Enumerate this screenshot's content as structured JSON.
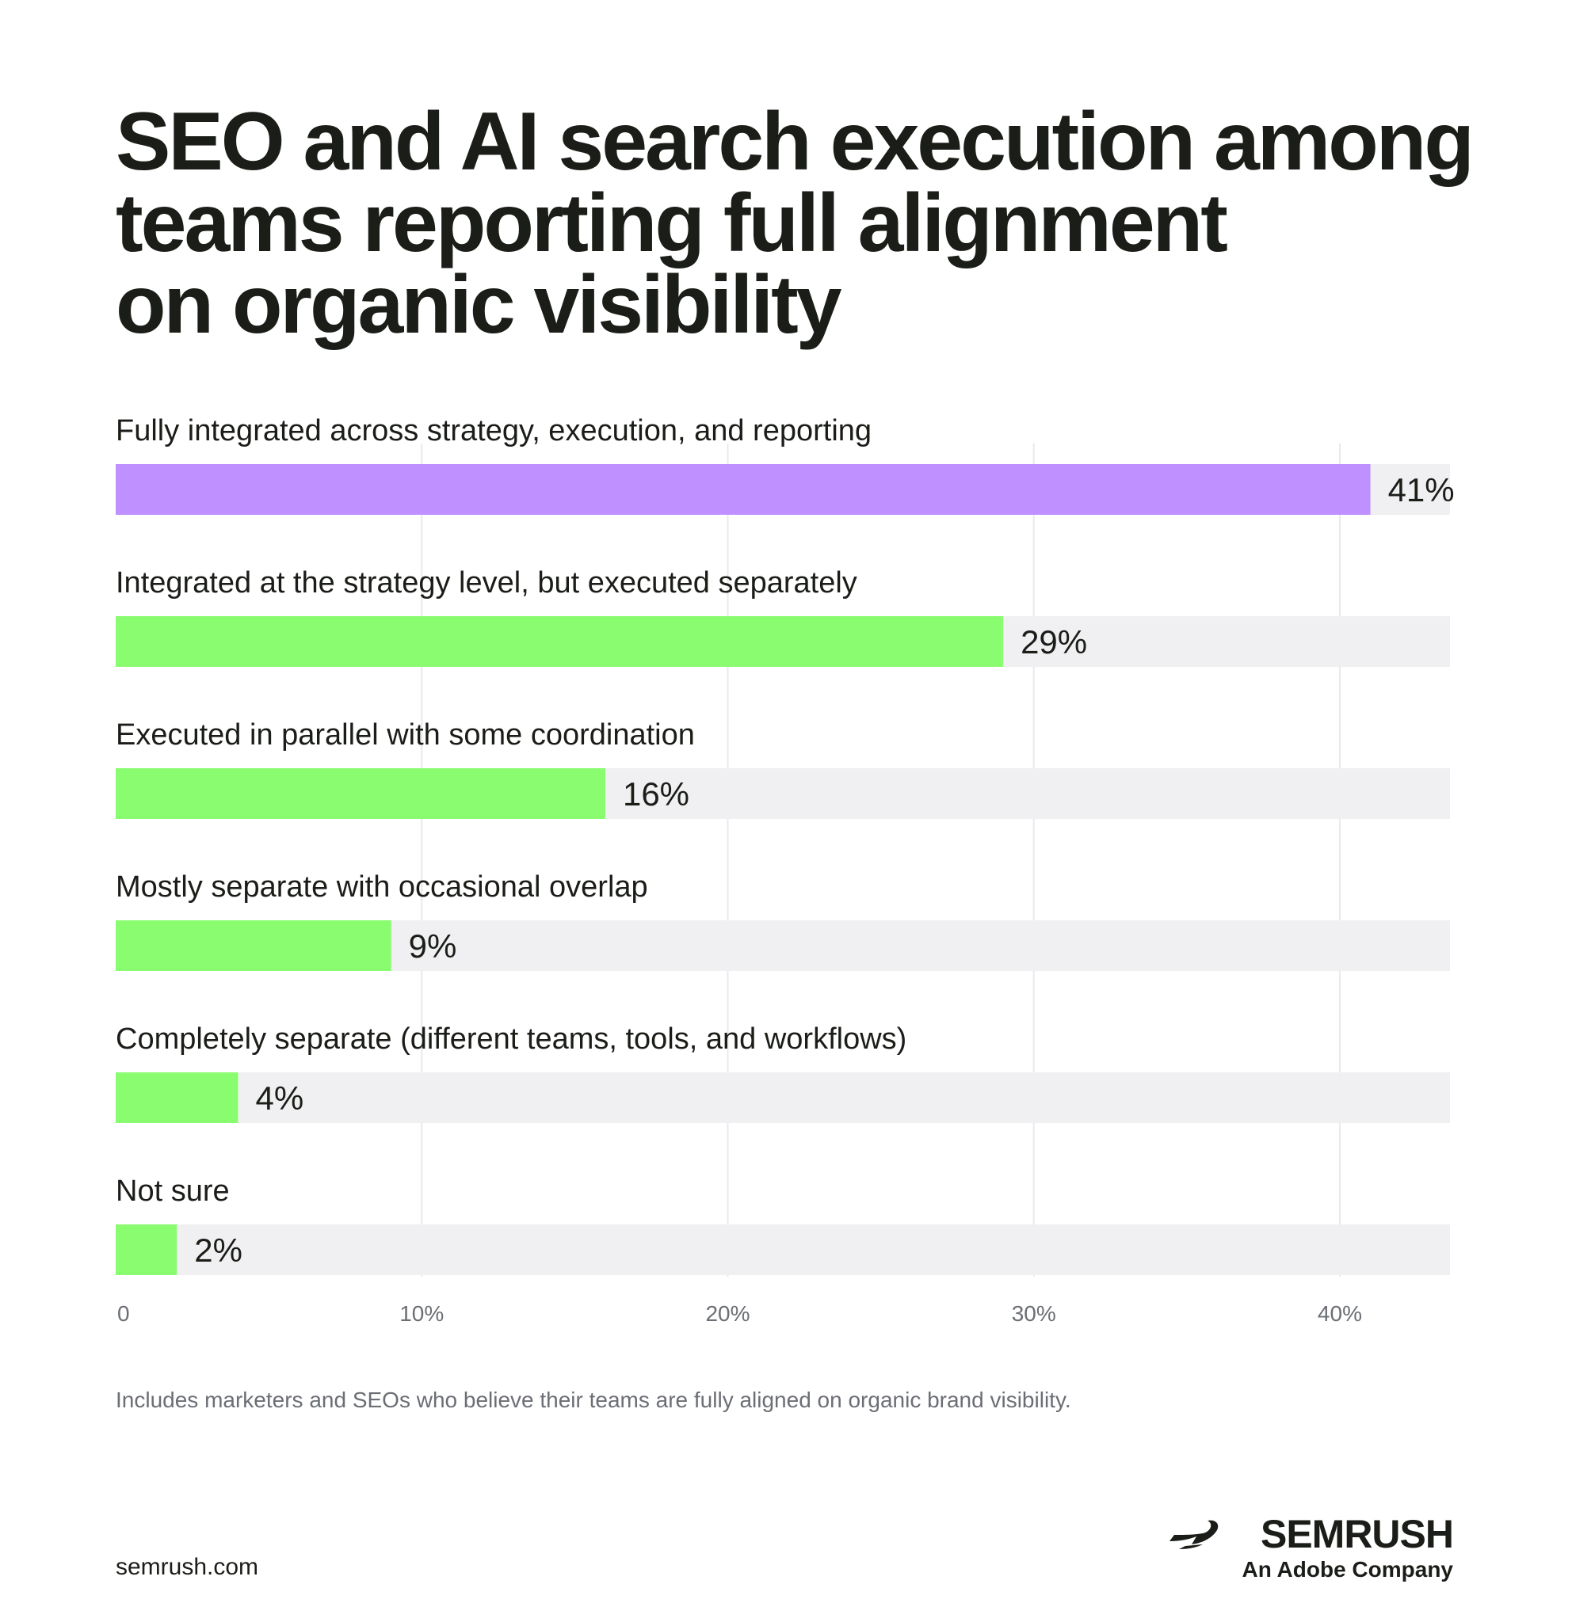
{
  "title_lines": [
    "SEO and AI search execution among",
    "teams reporting full alignment",
    "on organic visibility"
  ],
  "chart_data": {
    "type": "bar",
    "orientation": "horizontal",
    "title": "SEO and AI search execution among teams reporting full alignment on organic visibility",
    "categories": [
      "Fully integrated across strategy, execution, and reporting",
      "Integrated at the strategy level, but executed separately",
      "Executed in parallel with some coordination",
      "Mostly separate with occasional overlap",
      "Completely separate (different teams, tools, and workflows)",
      "Not sure"
    ],
    "values": [
      41,
      29,
      16,
      9,
      4,
      2
    ],
    "value_labels": [
      "41%",
      "29%",
      "16%",
      "9%",
      "4%",
      "2%"
    ],
    "xlim": [
      0,
      43.6
    ],
    "xticks": [
      0,
      10,
      20,
      30,
      40
    ],
    "xtick_labels": [
      "0",
      "10%",
      "20%",
      "30%",
      "40%"
    ],
    "grid": true,
    "colors": {
      "highlight": "#bf90ff",
      "default": "#8afc70",
      "track": "#f0f0f2",
      "grid": "#e9e9ec"
    }
  },
  "footnote": "Includes marketers and SEOs who believe their teams are fully aligned on organic brand visibility.",
  "site": "semrush.com",
  "logo": {
    "icon": "semrush-fireball-icon",
    "wordmark": "SEMRUSH",
    "subtitle": "An Adobe Company"
  }
}
